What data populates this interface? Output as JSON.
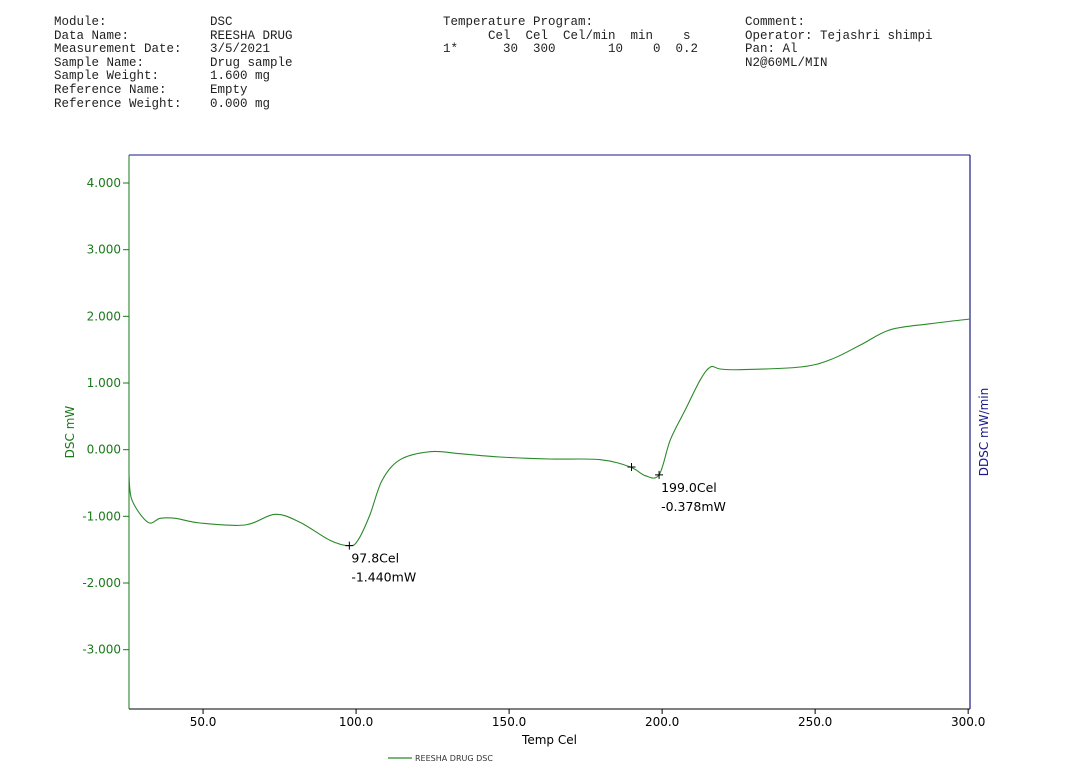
{
  "header": {
    "info": [
      {
        "label": "Module:",
        "value": "DSC"
      },
      {
        "label": "Data Name:",
        "value": "REESHA DRUG"
      },
      {
        "label": "Measurement Date:",
        "value": "3/5/2021"
      },
      {
        "label": "Sample Name:",
        "value": "Drug sample"
      },
      {
        "label": "Sample Weight:",
        "value": "1.600 mg"
      },
      {
        "label": "Reference Name:",
        "value": "Empty"
      },
      {
        "label": "Reference Weight:",
        "value": "0.000 mg"
      }
    ],
    "program": {
      "title": "Temperature Program:",
      "units": "      Cel  Cel  Cel/min  min    s",
      "row": "1*      30  300       10    0  0.2"
    },
    "comment": [
      "Comment:",
      "Operator: Tejashri shimpi",
      "Pan: Al",
      "N2@60ML/MIN"
    ]
  },
  "chart_data": {
    "type": "line",
    "xlabel": "Temp Cel",
    "ylabel": "DSC mW",
    "y2label": "DDSC mW/min",
    "xlim": [
      25.8,
      300.6
    ],
    "ylim": [
      -3.89,
      4.42
    ],
    "xticks": [
      50,
      100,
      150,
      200,
      250,
      300
    ],
    "xtick_labels": [
      "50.0",
      "100.0",
      "150.0",
      "200.0",
      "250.0",
      "300.0"
    ],
    "yticks": [
      4,
      3,
      2,
      1,
      0,
      -1,
      -2,
      -3
    ],
    "ytick_labels": [
      "4.000",
      "3.000",
      "2.000",
      "1.000",
      "0.000",
      "-1.000",
      "-2.000",
      "-3.000"
    ],
    "grid": false,
    "legend": "bottom-center",
    "colors": {
      "series": "#2a8a2a",
      "axis_left": "#1a7a1a",
      "axis_right": "#1a1a8a"
    },
    "series": [
      {
        "name": "REESHA DRUG  DSC",
        "x": [
          25.8,
          26.8,
          32,
          36,
          41,
          49,
          63.7,
          73.5,
          81.7,
          91.5,
          97.8,
          100.6,
          104.5,
          108.5,
          114.4,
          124.2,
          134,
          147,
          163.5,
          179.8,
          189.6,
          194.5,
          199.0,
          202.7,
          207.6,
          212.5,
          215.8,
          219,
          225.6,
          245.2,
          255,
          264.8,
          274.6,
          287.7,
          300.6
        ],
        "y": [
          -0.38,
          -0.76,
          -1.09,
          -1.03,
          -1.03,
          -1.1,
          -1.13,
          -0.97,
          -1.09,
          -1.36,
          -1.44,
          -1.36,
          -0.98,
          -0.46,
          -0.15,
          -0.03,
          -0.06,
          -0.11,
          -0.14,
          -0.15,
          -0.26,
          -0.39,
          -0.378,
          0.15,
          0.6,
          1.05,
          1.24,
          1.21,
          1.2,
          1.24,
          1.35,
          1.57,
          1.8,
          1.89,
          1.96
        ]
      }
    ],
    "annotations": [
      {
        "x": 97.8,
        "y": -1.44,
        "lines": [
          "97.8Cel",
          "-1.440mW"
        ]
      },
      {
        "x": 199.0,
        "y": -0.378,
        "lines": [
          "199.0Cel",
          "-0.378mW"
        ]
      },
      {
        "x": 190.0,
        "y": -0.26,
        "lines": []
      }
    ]
  }
}
